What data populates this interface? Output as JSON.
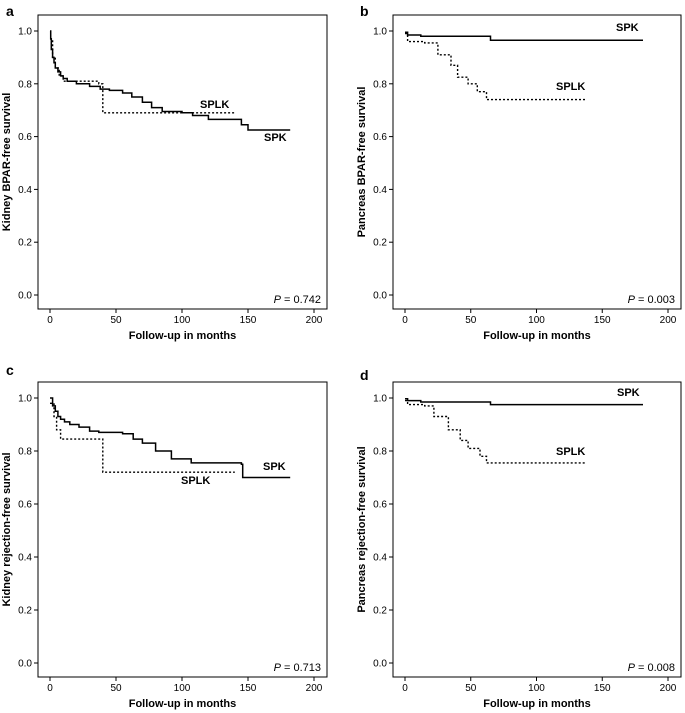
{
  "chart_data": [
    {
      "type": "line",
      "panel_label": "a",
      "xlabel": "Follow-up in months",
      "ylabel": "Kidney BPAR-free survival",
      "xlim": [
        0,
        200
      ],
      "ylim": [
        0,
        1
      ],
      "xticks": [
        "0",
        "50",
        "100",
        "150",
        "200"
      ],
      "yticks": [
        "0.0",
        "0.2",
        "0.4",
        "0.6",
        "0.8",
        "1.0"
      ],
      "p_italic": "P",
      "p_rest": " = 0.742",
      "series": [
        {
          "name": "SPK",
          "style": "solid",
          "points": [
            [
              0,
              1.0
            ],
            [
              0.5,
              0.97
            ],
            [
              1,
              0.93
            ],
            [
              2,
              0.9
            ],
            [
              3,
              0.88
            ],
            [
              4,
              0.86
            ],
            [
              6,
              0.845
            ],
            [
              8,
              0.83
            ],
            [
              10,
              0.82
            ],
            [
              13,
              0.81
            ],
            [
              20,
              0.8
            ],
            [
              30,
              0.79
            ],
            [
              38,
              0.78
            ],
            [
              45,
              0.775
            ],
            [
              55,
              0.765
            ],
            [
              62,
              0.75
            ],
            [
              70,
              0.73
            ],
            [
              77,
              0.71
            ],
            [
              85,
              0.695
            ],
            [
              100,
              0.69
            ],
            [
              108,
              0.68
            ],
            [
              120,
              0.665
            ],
            [
              145,
              0.645
            ],
            [
              150,
              0.625
            ],
            [
              182,
              0.625
            ]
          ]
        },
        {
          "name": "SPLK",
          "style": "dotted",
          "points": [
            [
              0,
              0.97
            ],
            [
              2,
              0.9
            ],
            [
              4,
              0.86
            ],
            [
              7,
              0.83
            ],
            [
              10,
              0.81
            ],
            [
              37,
              0.8
            ],
            [
              40,
              0.69
            ],
            [
              140,
              0.69
            ]
          ]
        }
      ]
    },
    {
      "type": "line",
      "panel_label": "b",
      "xlabel": "Follow-up in months",
      "ylabel": "Pancreas BPAR-free survival",
      "xlim": [
        0,
        200
      ],
      "ylim": [
        0,
        1
      ],
      "xticks": [
        "0",
        "50",
        "100",
        "150",
        "200"
      ],
      "yticks": [
        "0.0",
        "0.2",
        "0.4",
        "0.6",
        "0.8",
        "1.0"
      ],
      "p_italic": "P",
      "p_rest": " = 0.003",
      "series": [
        {
          "name": "SPK",
          "style": "solid",
          "points": [
            [
              0,
              0.995
            ],
            [
              2,
              0.985
            ],
            [
              12,
              0.98
            ],
            [
              65,
              0.965
            ],
            [
              181,
              0.965
            ]
          ]
        },
        {
          "name": "SPLK",
          "style": "dotted",
          "points": [
            [
              0,
              0.99
            ],
            [
              2,
              0.96
            ],
            [
              15,
              0.955
            ],
            [
              25,
              0.91
            ],
            [
              35,
              0.87
            ],
            [
              40,
              0.825
            ],
            [
              48,
              0.8
            ],
            [
              55,
              0.77
            ],
            [
              62,
              0.74
            ],
            [
              138,
              0.74
            ]
          ]
        }
      ]
    },
    {
      "type": "line",
      "panel_label": "c",
      "xlabel": "Follow-up in months",
      "ylabel": "Kidney rejection-free survival",
      "xlim": [
        0,
        200
      ],
      "ylim": [
        0,
        1
      ],
      "xticks": [
        "0",
        "50",
        "100",
        "150",
        "200"
      ],
      "yticks": [
        "0.0",
        "0.2",
        "0.4",
        "0.6",
        "0.8",
        "1.0"
      ],
      "p_italic": "P",
      "p_rest": " = 0.713",
      "series": [
        {
          "name": "SPK",
          "style": "solid",
          "points": [
            [
              0,
              1.0
            ],
            [
              2,
              0.97
            ],
            [
              4,
              0.95
            ],
            [
              6,
              0.93
            ],
            [
              8,
              0.92
            ],
            [
              11,
              0.91
            ],
            [
              15,
              0.9
            ],
            [
              22,
              0.89
            ],
            [
              30,
              0.875
            ],
            [
              37,
              0.87
            ],
            [
              55,
              0.865
            ],
            [
              63,
              0.845
            ],
            [
              70,
              0.83
            ],
            [
              80,
              0.8
            ],
            [
              92,
              0.77
            ],
            [
              107,
              0.755
            ],
            [
              145,
              0.75
            ],
            [
              146,
              0.7
            ],
            [
              182,
              0.7
            ]
          ]
        },
        {
          "name": "SPLK",
          "style": "dotted",
          "points": [
            [
              0,
              0.98
            ],
            [
              3,
              0.93
            ],
            [
              5,
              0.88
            ],
            [
              8,
              0.845
            ],
            [
              35,
              0.845
            ],
            [
              40,
              0.72
            ],
            [
              140,
              0.72
            ]
          ]
        }
      ]
    },
    {
      "type": "line",
      "panel_label": "d",
      "xlabel": "Follow-up in months",
      "ylabel": "Pancreas rejection-free survival",
      "xlim": [
        0,
        200
      ],
      "ylim": [
        0,
        1
      ],
      "xticks": [
        "0",
        "50",
        "100",
        "150",
        "200"
      ],
      "yticks": [
        "0.0",
        "0.2",
        "0.4",
        "0.6",
        "0.8",
        "1.0"
      ],
      "p_italic": "P",
      "p_rest": " = 0.008",
      "series": [
        {
          "name": "SPK",
          "style": "solid",
          "points": [
            [
              0,
              0.997
            ],
            [
              2,
              0.99
            ],
            [
              12,
              0.985
            ],
            [
              65,
              0.975
            ],
            [
              181,
              0.975
            ]
          ]
        },
        {
          "name": "SPLK",
          "style": "dotted",
          "points": [
            [
              0,
              0.99
            ],
            [
              2,
              0.975
            ],
            [
              15,
              0.97
            ],
            [
              22,
              0.93
            ],
            [
              33,
              0.88
            ],
            [
              42,
              0.84
            ],
            [
              48,
              0.81
            ],
            [
              57,
              0.78
            ],
            [
              62,
              0.755
            ],
            [
              138,
              0.755
            ]
          ]
        }
      ]
    }
  ]
}
